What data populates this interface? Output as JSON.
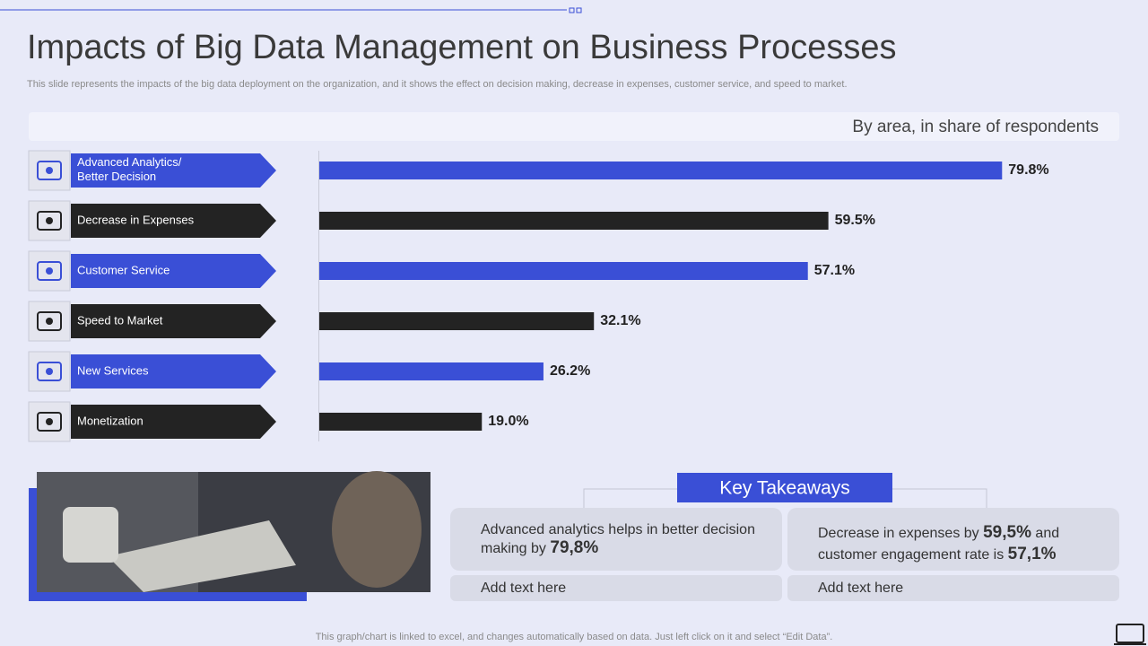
{
  "title": "Impacts of Big Data Management on Business Processes",
  "subtitle": "This slide represents the impacts of the big data deployment on the organization, and it shows the effect on decision making, decrease in expenses, customer service, and speed to market.",
  "chart_data": {
    "type": "hbar",
    "title": "By area, in share of respondents",
    "categories": [
      "Advanced Analytics/ Better Decision",
      "Decrease  in Expenses",
      "Customer Service",
      "Speed  to Market",
      "New Services",
      "Monetization"
    ],
    "values": [
      79.8,
      59.5,
      57.1,
      32.1,
      26.2,
      19.0
    ],
    "value_labels": [
      "79.8%",
      "59.5%",
      "57.1%",
      "32.1%",
      "26.2%",
      "19.0%"
    ],
    "colors": [
      "#3a4fd6",
      "#232323",
      "#3a4fd6",
      "#232323",
      "#3a4fd6",
      "#232323"
    ]
  },
  "takeaways": {
    "heading": "Key Takeaways",
    "cards": [
      {
        "parts": [
          "Advanced analytics  helps  in better decision making by ",
          "79,8%"
        ],
        "note": "Add text here"
      },
      {
        "parts": [
          "Decrease in expenses by ",
          "59,5%",
          " and customer engagement rate is ",
          "57,1%"
        ],
        "note": "Add text here"
      }
    ]
  },
  "footer": "This graph/chart is linked to excel,  and changes automatically based on data. Just left click on it and select “Edit Data”."
}
